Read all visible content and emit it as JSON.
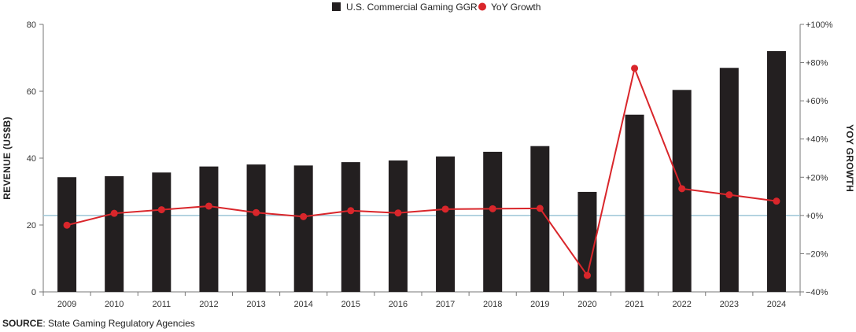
{
  "chart_data": {
    "type": "bar+line",
    "categories": [
      "2009",
      "2010",
      "2011",
      "2012",
      "2013",
      "2014",
      "2015",
      "2016",
      "2017",
      "2018",
      "2019",
      "2020",
      "2021",
      "2022",
      "2023",
      "2024"
    ],
    "series": [
      {
        "name": "U.S. Commercial Gaming GGR",
        "type": "bar",
        "axis": "left",
        "values": [
          34.3,
          34.6,
          35.7,
          37.5,
          38.1,
          37.8,
          38.8,
          39.3,
          40.5,
          41.9,
          43.6,
          29.9,
          53.0,
          60.4,
          67.0,
          72.0
        ]
      },
      {
        "name": "YoY Growth",
        "type": "line",
        "axis": "right",
        "values": [
          -5.1,
          1.1,
          3.0,
          4.9,
          1.5,
          -0.6,
          2.5,
          1.3,
          3.3,
          3.5,
          3.7,
          -31.4,
          77.0,
          14.0,
          10.8,
          7.5
        ]
      }
    ],
    "ylabel": "REVENUE (US$B)",
    "ylim": [
      0,
      80
    ],
    "yticks": [
      "0",
      "20",
      "40",
      "60",
      "80"
    ],
    "y2label": "YOY GROWTH",
    "y2lim": [
      -40,
      100
    ],
    "y2ticks": [
      "−40%",
      "−20%",
      "+0%",
      "+20%",
      "+40%",
      "+60%",
      "+80%",
      "+100%"
    ],
    "legend_position": "top-center",
    "grid": false,
    "colors": {
      "bar": "#231f20",
      "line": "#d9262b",
      "zero_line": "#9ec5d6"
    }
  },
  "source": {
    "label": "SOURCE",
    "text": ": State Gaming Regulatory Agencies"
  }
}
